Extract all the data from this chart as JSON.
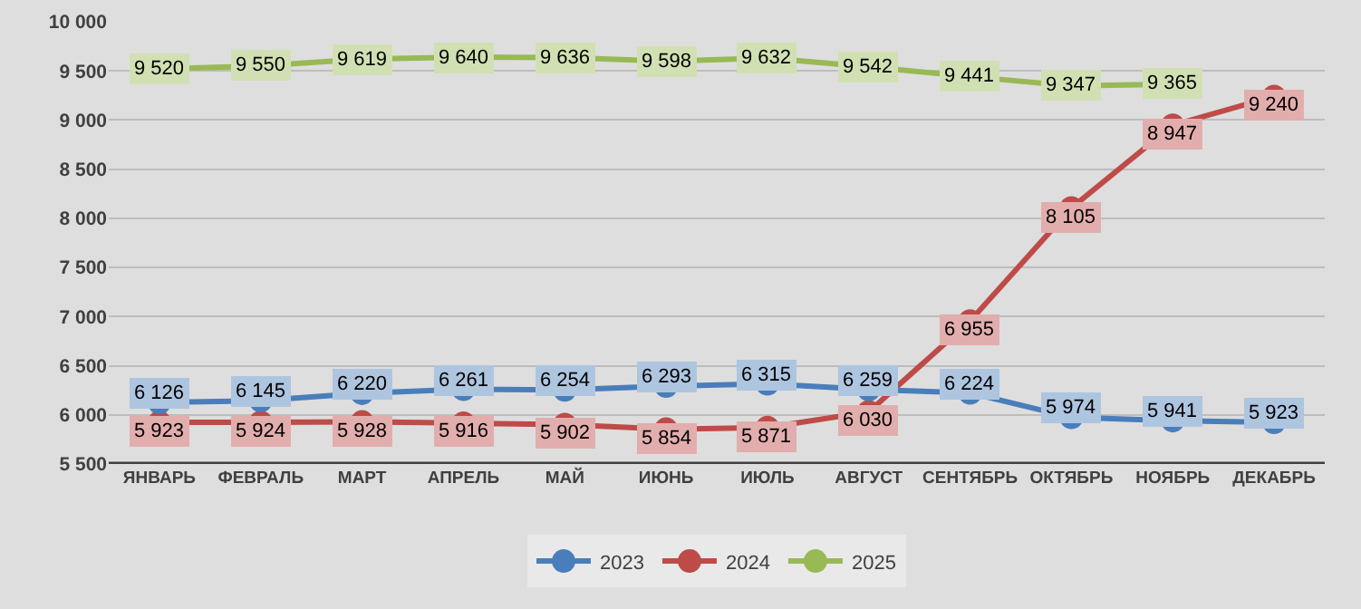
{
  "chart_data": {
    "type": "line",
    "categories": [
      "ЯНВАРЬ",
      "ФЕВРАЛЬ",
      "МАРТ",
      "АПРЕЛЬ",
      "МАЙ",
      "ИЮНЬ",
      "ИЮЛЬ",
      "АВГУСТ",
      "СЕНТЯБРЬ",
      "ОКТЯБРЬ",
      "НОЯБРЬ",
      "ДЕКАБРЬ"
    ],
    "series": [
      {
        "name": "2023",
        "color": "#4a7ebb",
        "values": [
          6126,
          6145,
          6220,
          6261,
          6254,
          6293,
          6315,
          6259,
          6224,
          5974,
          5941,
          5923
        ],
        "value_labels": [
          "6 126",
          "6 145",
          "6 220",
          "6 261",
          "6 254",
          "6 293",
          "6 315",
          "6 259",
          "6 224",
          "5 974",
          "5 941",
          "5 923"
        ]
      },
      {
        "name": "2024",
        "color": "#be4b48",
        "values": [
          5923,
          5924,
          5928,
          5916,
          5902,
          5854,
          5871,
          6030,
          6955,
          8105,
          8947,
          9240
        ],
        "value_labels": [
          "5 923",
          "5 924",
          "5 928",
          "5 916",
          "5 902",
          "5 854",
          "5 871",
          "6 030",
          "6 955",
          "8 105",
          "8 947",
          "9 240"
        ]
      },
      {
        "name": "2025",
        "color": "#98b954",
        "values": [
          9520,
          9550,
          9619,
          9640,
          9636,
          9598,
          9632,
          9542,
          9441,
          9347,
          9365,
          null
        ],
        "value_labels": [
          "9 520",
          "9 550",
          "9 619",
          "9 640",
          "9 636",
          "9 598",
          "9 632",
          "9 542",
          "9 441",
          "9 347",
          "9 365",
          null
        ]
      }
    ],
    "ylim": [
      5500,
      10000
    ],
    "yticks": [
      {
        "value": 5500,
        "label": "5 500"
      },
      {
        "value": 6000,
        "label": "6 000"
      },
      {
        "value": 6500,
        "label": "6 500"
      },
      {
        "value": 7000,
        "label": "7 000"
      },
      {
        "value": 7500,
        "label": "7 500"
      },
      {
        "value": 8000,
        "label": "8 000"
      },
      {
        "value": 8500,
        "label": "8 500"
      },
      {
        "value": 9000,
        "label": "9 000"
      },
      {
        "value": 9500,
        "label": "9 500"
      },
      {
        "value": 10000,
        "label": "10 000"
      }
    ],
    "grid": "y",
    "legend": "bottom",
    "marker": "circle",
    "line_style": "solid"
  }
}
